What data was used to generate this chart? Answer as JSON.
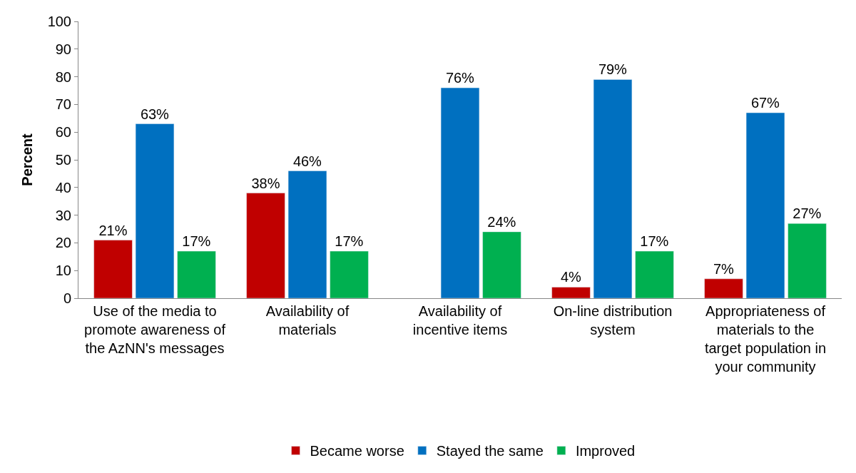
{
  "chart_data": {
    "type": "bar",
    "ylabel": "Percent",
    "categories": [
      "Use of the media to promote awareness of the AzNN's messages",
      "Availability of materials",
      "Availability of incentive items",
      "On-line distribution system",
      "Appropriateness of materials to the target population in your community"
    ],
    "series": [
      {
        "name": "Became worse",
        "color": "#c00000",
        "values": [
          21,
          38,
          null,
          4,
          7
        ],
        "value_labels": [
          "21%",
          "38%",
          null,
          "4%",
          "7%"
        ]
      },
      {
        "name": "Stayed the same",
        "color": "#0070c0",
        "values": [
          63,
          46,
          76,
          79,
          67
        ],
        "value_labels": [
          "63%",
          "46%",
          "76%",
          "79%",
          "67%"
        ]
      },
      {
        "name": "Improved",
        "color": "#00b050",
        "values": [
          17,
          17,
          24,
          17,
          27
        ],
        "value_labels": [
          "17%",
          "17%",
          "24%",
          "17%",
          "27%"
        ]
      }
    ],
    "ylim": [
      0,
      100
    ],
    "yticks": [
      0,
      10,
      20,
      30,
      40,
      50,
      60,
      70,
      80,
      90,
      100
    ],
    "legend": "bottom"
  }
}
